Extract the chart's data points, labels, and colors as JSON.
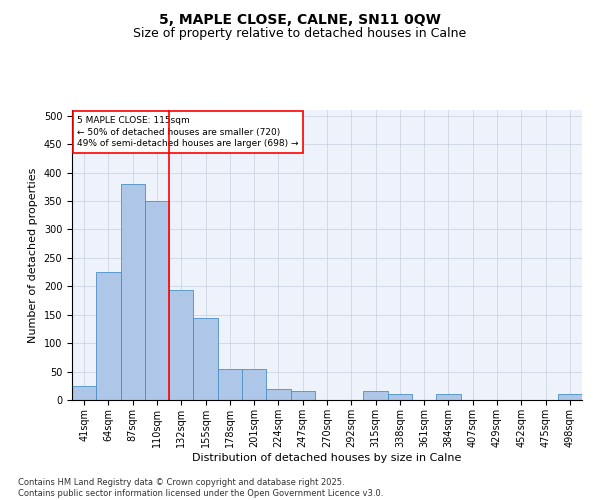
{
  "title1": "5, MAPLE CLOSE, CALNE, SN11 0QW",
  "title2": "Size of property relative to detached houses in Calne",
  "xlabel": "Distribution of detached houses by size in Calne",
  "ylabel": "Number of detached properties",
  "categories": [
    "41sqm",
    "64sqm",
    "87sqm",
    "110sqm",
    "132sqm",
    "155sqm",
    "178sqm",
    "201sqm",
    "224sqm",
    "247sqm",
    "270sqm",
    "292sqm",
    "315sqm",
    "338sqm",
    "361sqm",
    "384sqm",
    "407sqm",
    "429sqm",
    "452sqm",
    "475sqm",
    "498sqm"
  ],
  "values": [
    25,
    225,
    380,
    350,
    193,
    145,
    55,
    55,
    20,
    15,
    0,
    0,
    15,
    10,
    0,
    10,
    0,
    0,
    0,
    0,
    10
  ],
  "bar_color": "#aec6e8",
  "bar_edge_color": "#4a90c4",
  "vline_x": 3.5,
  "vline_color": "red",
  "annotation_text": "5 MAPLE CLOSE: 115sqm\n← 50% of detached houses are smaller (720)\n49% of semi-detached houses are larger (698) →",
  "annotation_box_color": "red",
  "annotation_bg": "white",
  "footnote": "Contains HM Land Registry data © Crown copyright and database right 2025.\nContains public sector information licensed under the Open Government Licence v3.0.",
  "ylim": [
    0,
    510
  ],
  "yticks": [
    0,
    50,
    100,
    150,
    200,
    250,
    300,
    350,
    400,
    450,
    500
  ],
  "grid_color": "#c8d0e0",
  "bg_color": "#eef2fa",
  "title_fontsize": 10,
  "subtitle_fontsize": 9,
  "axis_fontsize": 8,
  "tick_fontsize": 7,
  "footnote_fontsize": 6
}
